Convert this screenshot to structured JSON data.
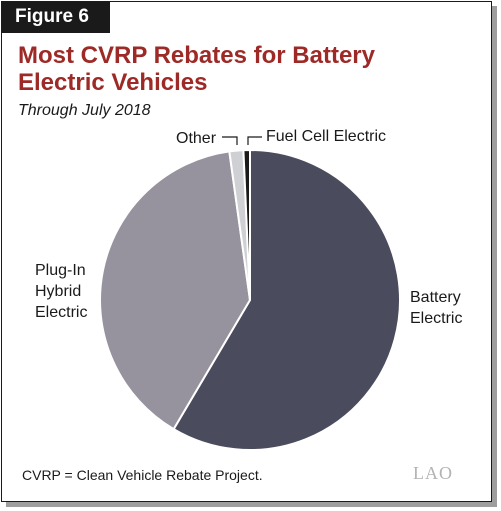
{
  "figure_label": "Figure 6",
  "chart_data": {
    "type": "pie",
    "title": "Most CVRP Rebates for Battery Electric Vehicles",
    "subtitle": "Through July 2018",
    "slices": [
      {
        "label": "Battery Electric",
        "value": 58.5,
        "color": "#4a4b5d"
      },
      {
        "label": "Plug-In Hybrid Electric",
        "value": 39.3,
        "color": "#96939f"
      },
      {
        "label": "Other",
        "value": 1.5,
        "color": "#cfd0d4"
      },
      {
        "label": "Fuel Cell Electric",
        "value": 0.7,
        "color": "#1a1a1a"
      }
    ]
  },
  "labels": {
    "battery": "Battery\nElectric",
    "phev": "Plug-In\nHybrid\nElectric",
    "other": "Other",
    "fuel_cell": "Fuel Cell Electric"
  },
  "footnote": "CVRP = Clean Vehicle Rebate Project.",
  "logo": "LAO"
}
